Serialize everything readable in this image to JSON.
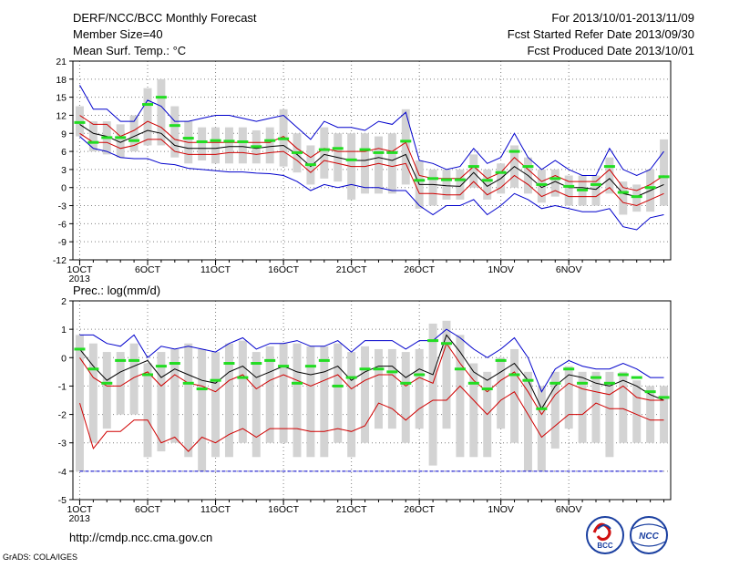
{
  "header": {
    "title": "DERF/NCC/BCC Monthly Forecast",
    "member_size": "Member Size=40",
    "period": "For 2013/10/01-2013/11/09",
    "fcst_started": "Fcst Started Refer Date 2013/09/30",
    "fcst_produced": "Fcst Produced Date 2013/10/01"
  },
  "footer": {
    "url": "http://cmdp.ncc.cma.gov.cn",
    "credit": "GrADS: COLA/IGES",
    "logo_bcc": "BCC",
    "logo_ncc": "NCC"
  },
  "colors": {
    "box": "#d3d3d3",
    "mean": "#000000",
    "spread": "#d00000",
    "envelope": "#0000cc",
    "climo": "#22dd22",
    "grid": "#808080"
  },
  "chart_data": [
    {
      "type": "line",
      "title": "Mean Surf. Temp.: °C",
      "ylim": [
        -12,
        21
      ],
      "yticks": [
        -12,
        -9,
        -6,
        -3,
        0,
        3,
        6,
        9,
        12,
        15,
        18,
        21
      ],
      "xlim": [
        0,
        40
      ],
      "xtick_positions": [
        1,
        6,
        11,
        16,
        21,
        26,
        32,
        37
      ],
      "xtick_labels": [
        "1OCT",
        "6OCT",
        "11OCT",
        "16OCT",
        "21OCT",
        "26OCT",
        "1NOV",
        "6NOV"
      ],
      "year_label": "2013",
      "series": [
        {
          "values": [
            10.5,
            9,
            8.5,
            7.5,
            8.5,
            9.5,
            9,
            7,
            6.5,
            6.5,
            6.5,
            6.8,
            6.8,
            6.5,
            6.8,
            7,
            5.5,
            3.5,
            5.5,
            5,
            4.5,
            4.5,
            5,
            4.5,
            5.5,
            0.5,
            0.5,
            0.3,
            0.2,
            2.5,
            0.2,
            1.5,
            3.5,
            2,
            0,
            1,
            0,
            0,
            -0.3,
            1.5,
            -1,
            -1.5,
            -0.5,
            0.5
          ]
        },
        {
          "values": [
            12,
            10.5,
            10.5,
            8.5,
            9.5,
            11,
            10,
            8,
            7.5,
            7.5,
            7.5,
            7.5,
            7.5,
            7.5,
            7.5,
            8.5,
            6.5,
            5,
            6.5,
            6,
            6,
            6,
            6.5,
            6,
            7.5,
            2,
            1.5,
            1.5,
            1.5,
            3.5,
            1.5,
            2.5,
            5,
            3,
            1,
            2,
            1,
            1,
            1,
            3,
            0,
            -0.5,
            0.5,
            2
          ]
        },
        {
          "values": [
            9,
            7.5,
            7.5,
            6.5,
            7,
            8,
            8,
            6,
            5.5,
            5.5,
            5.5,
            5.8,
            5.8,
            5.5,
            5.8,
            6,
            4.5,
            2.5,
            4.5,
            4,
            3.5,
            3.5,
            4,
            3.5,
            4,
            -1,
            -1,
            -1.2,
            -1.2,
            1,
            -1.2,
            0,
            2,
            0.5,
            -1.5,
            -0.5,
            -1.5,
            -1.5,
            -1.5,
            0,
            -2.5,
            -3,
            -2,
            -1
          ]
        },
        {
          "values": [
            17,
            13,
            13,
            11,
            11,
            14.5,
            13.5,
            11,
            11,
            11.5,
            12,
            12,
            11.5,
            11,
            11.5,
            12,
            10,
            8,
            11,
            10,
            10,
            9.5,
            11,
            10.5,
            12.5,
            4.5,
            4,
            3,
            3.5,
            6.5,
            4,
            5,
            9,
            5,
            3,
            4.5,
            3,
            2,
            2,
            6.5,
            3,
            2,
            3,
            6
          ]
        },
        {
          "values": [
            8.5,
            6.5,
            6,
            5,
            4.8,
            4.8,
            4,
            3.8,
            3.2,
            3,
            2.8,
            2.6,
            2.6,
            2.4,
            2.3,
            2,
            1,
            -0.5,
            0.5,
            0,
            0.5,
            0,
            0,
            -0.5,
            -0.5,
            -3,
            -4.5,
            -3,
            -3,
            -2,
            -4.5,
            -3,
            -1,
            -2,
            -3.5,
            -3,
            -3.5,
            -4,
            -4,
            -3.5,
            -6.5,
            -7,
            -5,
            -4.5
          ]
        },
        {
          "values": [
            10.8,
            7.5,
            8.3,
            8.3,
            7.8,
            13.8,
            15,
            10.3,
            8.2,
            7.6,
            7.8,
            7.7,
            7.6,
            6.8,
            7.8,
            8.1,
            5.8,
            3.8,
            6.3,
            6.5,
            4.6,
            6.3,
            5.8,
            5.8,
            7.7,
            1.2,
            1.5,
            1.3,
            1.3,
            3.5,
            1.2,
            2.5,
            6,
            3.5,
            0.5,
            1.5,
            0.2,
            -0.4,
            0.5,
            3.5,
            -0.8,
            -1.5,
            0,
            1.8
          ]
        }
      ],
      "boxes": [
        {
          "lo": 8.5,
          "hi": 13.5
        },
        {
          "lo": 6,
          "hi": 11
        },
        {
          "lo": 5.5,
          "hi": 11
        },
        {
          "lo": 5,
          "hi": 10.5
        },
        {
          "lo": 6,
          "hi": 12
        },
        {
          "lo": 7,
          "hi": 16.5
        },
        {
          "lo": 7,
          "hi": 18
        },
        {
          "lo": 5,
          "hi": 13.5
        },
        {
          "lo": 4,
          "hi": 11
        },
        {
          "lo": 4.5,
          "hi": 10
        },
        {
          "lo": 4,
          "hi": 10
        },
        {
          "lo": 4,
          "hi": 10
        },
        {
          "lo": 4,
          "hi": 10
        },
        {
          "lo": 4,
          "hi": 9.5
        },
        {
          "lo": 4,
          "hi": 10
        },
        {
          "lo": 3.5,
          "hi": 13
        },
        {
          "lo": 2.5,
          "hi": 9
        },
        {
          "lo": 0.5,
          "hi": 7
        },
        {
          "lo": 1.5,
          "hi": 10
        },
        {
          "lo": 1,
          "hi": 9
        },
        {
          "lo": -2,
          "hi": 9
        },
        {
          "lo": -1,
          "hi": 9
        },
        {
          "lo": -1,
          "hi": 8.5
        },
        {
          "lo": -1,
          "hi": 9
        },
        {
          "lo": 0.5,
          "hi": 13
        },
        {
          "lo": -3.5,
          "hi": 4.5
        },
        {
          "lo": -3,
          "hi": 3
        },
        {
          "lo": -2,
          "hi": 3
        },
        {
          "lo": -2,
          "hi": 3
        },
        {
          "lo": 0,
          "hi": 5.5
        },
        {
          "lo": -2,
          "hi": 3
        },
        {
          "lo": -1,
          "hi": 4
        },
        {
          "lo": 0,
          "hi": 7
        },
        {
          "lo": -1,
          "hi": 5
        },
        {
          "lo": -2.5,
          "hi": 3
        },
        {
          "lo": -1.5,
          "hi": 3
        },
        {
          "lo": -3,
          "hi": 2
        },
        {
          "lo": -3,
          "hi": 2
        },
        {
          "lo": -3,
          "hi": 2
        },
        {
          "lo": -1,
          "hi": 5
        },
        {
          "lo": -4.5,
          "hi": 1
        },
        {
          "lo": -4,
          "hi": 0.5
        },
        {
          "lo": -4,
          "hi": 3
        },
        {
          "lo": -3,
          "hi": 8
        }
      ]
    },
    {
      "type": "line",
      "title": "Prec.: log(mm/d)",
      "ylim": [
        -5,
        2
      ],
      "yticks": [
        -5,
        -4,
        -3,
        -2,
        -1,
        0,
        1,
        2
      ],
      "xlim": [
        0,
        40
      ],
      "xtick_positions": [
        1,
        6,
        11,
        16,
        21,
        26,
        32,
        37
      ],
      "xtick_labels": [
        "1OCT",
        "6OCT",
        "11OCT",
        "16OCT",
        "21OCT",
        "26OCT",
        "1NOV",
        "6NOV"
      ],
      "year_label": "2013",
      "baseline": -4,
      "series": [
        {
          "values": [
            0.3,
            -0.3,
            -0.8,
            -0.5,
            -0.3,
            -0.1,
            -0.7,
            -0.4,
            -0.6,
            -0.8,
            -0.9,
            -0.5,
            -0.3,
            -0.7,
            -0.5,
            -0.3,
            -0.5,
            -0.6,
            -0.5,
            -0.3,
            -0.8,
            -0.5,
            -0.3,
            -0.3,
            -0.7,
            -0.4,
            -0.6,
            0.8,
            0.2,
            -0.5,
            -0.8,
            -0.5,
            -0.2,
            -0.8,
            -1.8,
            -1,
            -0.6,
            -0.7,
            -0.9,
            -1,
            -0.8,
            -1,
            -1.3,
            -1.5
          ]
        },
        {
          "values": [
            0,
            -0.7,
            -1,
            -1,
            -0.7,
            -0.5,
            -1,
            -0.6,
            -0.9,
            -1,
            -1.2,
            -0.8,
            -0.6,
            -1.1,
            -0.8,
            -0.6,
            -0.8,
            -1,
            -0.8,
            -0.6,
            -1.1,
            -0.8,
            -0.6,
            -0.6,
            -1,
            -0.7,
            -0.9,
            0.5,
            -0.2,
            -0.8,
            -1.2,
            -0.8,
            -0.5,
            -1.2,
            -2,
            -1.3,
            -0.9,
            -1.1,
            -1.2,
            -1.3,
            -1,
            -1.4,
            -1.5,
            -1.5
          ]
        },
        {
          "values": [
            -1.6,
            -3.2,
            -2.6,
            -2.6,
            -2.2,
            -2.2,
            -3,
            -2.8,
            -3.3,
            -2.8,
            -3,
            -2.7,
            -2.5,
            -2.8,
            -2.5,
            -2.5,
            -2.5,
            -2.6,
            -2.6,
            -2.5,
            -2.6,
            -2.4,
            -1.6,
            -1.8,
            -2.2,
            -1.8,
            -1.5,
            -1.5,
            -1,
            -1.5,
            -2,
            -1.5,
            -1.2,
            -2,
            -2.8,
            -2.4,
            -2,
            -2,
            -1.6,
            -1.8,
            -1.8,
            -2,
            -2.2,
            -2.2
          ]
        },
        {
          "values": [
            0.8,
            0.8,
            0.5,
            0.4,
            0.8,
            0,
            0.4,
            0.3,
            0.4,
            0.3,
            0.2,
            0.5,
            0.7,
            0.3,
            0.5,
            0.5,
            0.6,
            0.4,
            0.4,
            0.6,
            0.2,
            0.6,
            0.6,
            0.6,
            0.3,
            0.6,
            0.6,
            1,
            0.7,
            0.3,
            0,
            0.3,
            0.7,
            0,
            -1.2,
            -0.4,
            -0.1,
            -0.3,
            -0.4,
            -0.4,
            -0.2,
            -0.4,
            -0.7,
            -0.7
          ]
        },
        {
          "values": [
            0.3,
            -0.4,
            -0.9,
            -0.1,
            -0.1,
            -0.6,
            -0.3,
            -0.2,
            -0.9,
            -1.1,
            -0.8,
            -0.2,
            -0.7,
            -0.2,
            -0.1,
            -0.3,
            -0.9,
            -0.3,
            -0.1,
            -1,
            -0.7,
            -0.4,
            -0.4,
            -0.5,
            -0.9,
            -0.6,
            0.6,
            0.5,
            -0.4,
            -0.9,
            -1.1,
            -0.1,
            -0.6,
            -0.8,
            -1.8,
            -0.9,
            -0.4,
            -0.9,
            -0.7,
            -0.9,
            -0.6,
            -0.7,
            -1.2,
            -1.4
          ]
        }
      ],
      "boxes": [
        {
          "lo": -4,
          "hi": 0.8
        },
        {
          "lo": -3,
          "hi": 0.5
        },
        {
          "lo": -2.5,
          "hi": 0.2
        },
        {
          "lo": -2,
          "hi": 0.2
        },
        {
          "lo": -2,
          "hi": 0.5
        },
        {
          "lo": -3.5,
          "hi": -0.2
        },
        {
          "lo": -3.3,
          "hi": 0.2
        },
        {
          "lo": -3,
          "hi": 0.3
        },
        {
          "lo": -3.5,
          "hi": 0.5
        },
        {
          "lo": -4,
          "hi": 0.3
        },
        {
          "lo": -3.5,
          "hi": 0.2
        },
        {
          "lo": -3.5,
          "hi": 0.5
        },
        {
          "lo": -3,
          "hi": 0.6
        },
        {
          "lo": -3.5,
          "hi": 0.2
        },
        {
          "lo": -3,
          "hi": 0.4
        },
        {
          "lo": -3,
          "hi": 0.5
        },
        {
          "lo": -3.5,
          "hi": 0.5
        },
        {
          "lo": -3.5,
          "hi": 0.4
        },
        {
          "lo": -3.5,
          "hi": 0.4
        },
        {
          "lo": -3,
          "hi": 0.5
        },
        {
          "lo": -3.5,
          "hi": 0.2
        },
        {
          "lo": -3,
          "hi": 0.4
        },
        {
          "lo": -2.5,
          "hi": 0.3
        },
        {
          "lo": -2.5,
          "hi": 0.3
        },
        {
          "lo": -3,
          "hi": 0.2
        },
        {
          "lo": -2.5,
          "hi": 0.3
        },
        {
          "lo": -3.8,
          "hi": 1.2
        },
        {
          "lo": -2.5,
          "hi": 1.3
        },
        {
          "lo": -3.5,
          "hi": 0.8
        },
        {
          "lo": -3.5,
          "hi": -0.2
        },
        {
          "lo": -3.5,
          "hi": -0.5
        },
        {
          "lo": -2.5,
          "hi": 0
        },
        {
          "lo": -3,
          "hi": 0.3
        },
        {
          "lo": -4,
          "hi": -0.5
        },
        {
          "lo": -4,
          "hi": -1
        },
        {
          "lo": -3.2,
          "hi": -0.5
        },
        {
          "lo": -2.5,
          "hi": -0.3
        },
        {
          "lo": -3,
          "hi": -0.5
        },
        {
          "lo": -3,
          "hi": -0.5
        },
        {
          "lo": -3.5,
          "hi": -0.5
        },
        {
          "lo": -3,
          "hi": -0.5
        },
        {
          "lo": -3,
          "hi": -0.8
        },
        {
          "lo": -3,
          "hi": -1
        },
        {
          "lo": -3,
          "hi": -1
        }
      ]
    }
  ]
}
